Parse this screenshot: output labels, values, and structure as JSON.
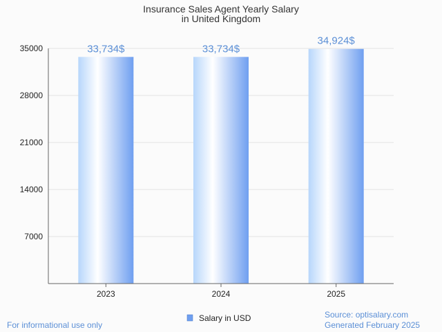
{
  "chart_data": {
    "type": "bar",
    "title": "Insurance Sales Agent Yearly Salary",
    "subtitle": "in United Kingdom",
    "categories": [
      "2023",
      "2024",
      "2025"
    ],
    "series": [
      {
        "name": "Salary in USD",
        "values": [
          33734,
          33734,
          34924
        ]
      }
    ],
    "data_labels": [
      "33,734$",
      "33,734$",
      "34,924$"
    ],
    "ylim": [
      0,
      35000
    ],
    "yticks": [
      7000,
      14000,
      21000,
      28000,
      35000
    ],
    "grid": true,
    "legend_position": "bottom-center",
    "xlabel": "",
    "ylabel": ""
  },
  "footer": {
    "left": "For informational use only",
    "source": "Source: optisalary.com",
    "generated": "Generated February 2025"
  },
  "colors": {
    "bar_light": "#e6f1ff",
    "bar_dark": "#6f9ff0",
    "label": "#5b8fd6",
    "grid": "#e3e3e3",
    "axis": "#666666"
  }
}
